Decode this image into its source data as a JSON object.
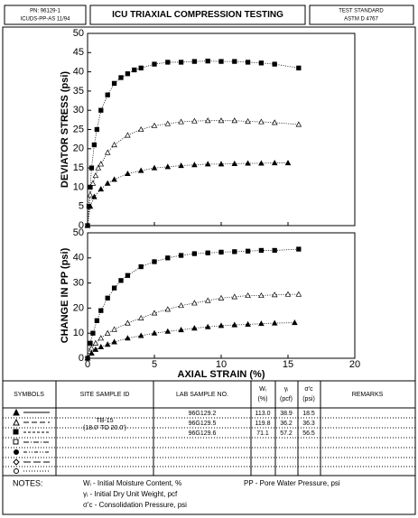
{
  "header": {
    "pn": "PN: 96129-1",
    "code": "ICUDS-PP-AS 11/94",
    "title": "ICU TRIAXIAL COMPRESSION TESTING",
    "standard_label": "TEST STANDARD",
    "standard": "ASTM D 4767"
  },
  "chart_data": [
    {
      "type": "line",
      "ylabel": "DEVIATOR STRESS (psi)",
      "xlim": [
        0,
        20
      ],
      "xticks": [
        0,
        5,
        10,
        15,
        20
      ],
      "show_xtick_labels": false,
      "ylim": [
        0,
        50
      ],
      "yticks": [
        0,
        5,
        10,
        15,
        20,
        25,
        30,
        35,
        40,
        45,
        50
      ],
      "grid": false,
      "series": [
        {
          "marker": "square",
          "filled": true,
          "color": "#000",
          "x": [
            0,
            0.1,
            0.2,
            0.3,
            0.5,
            0.7,
            1,
            1.5,
            2,
            2.5,
            3,
            3.5,
            4,
            5,
            6,
            7,
            8,
            9,
            10,
            11,
            12,
            13,
            14,
            15.8
          ],
          "values": [
            0,
            5,
            10,
            15,
            21,
            25,
            30,
            34,
            37,
            38.5,
            39.5,
            40.5,
            41,
            42,
            42.5,
            42.5,
            42.7,
            42.8,
            42.7,
            42.7,
            42.5,
            42.3,
            42,
            41
          ]
        },
        {
          "marker": "triangle",
          "filled": false,
          "color": "#000",
          "x": [
            0,
            0.2,
            0.4,
            0.6,
            0.8,
            1,
            1.5,
            2,
            3,
            4,
            5,
            6,
            7,
            8,
            9,
            10,
            11,
            12,
            13,
            14,
            15.8
          ],
          "values": [
            0,
            8,
            11,
            13,
            15,
            16,
            19,
            21,
            23.5,
            25,
            26,
            26.5,
            27,
            27.2,
            27.3,
            27.3,
            27.3,
            27.1,
            27,
            26.8,
            26.3
          ]
        },
        {
          "marker": "triangle",
          "filled": true,
          "color": "#000",
          "x": [
            0,
            0.2,
            0.5,
            1,
            1.5,
            2,
            3,
            4,
            5,
            6,
            7,
            8,
            9,
            10,
            11,
            12,
            13,
            14,
            15
          ],
          "values": [
            0,
            5,
            7.5,
            9.5,
            11,
            12,
            13.5,
            14.3,
            15,
            15.3,
            15.6,
            15.8,
            16,
            16,
            16.1,
            16.2,
            16.2,
            16.3,
            16.3
          ]
        }
      ]
    },
    {
      "type": "line",
      "ylabel": "CHANGE IN PP (psi)",
      "xlabel": "AXIAL STRAIN (%)",
      "xlim": [
        0,
        20
      ],
      "xticks": [
        0,
        5,
        10,
        15,
        20
      ],
      "show_xtick_labels": true,
      "ylim": [
        0,
        50
      ],
      "yticks": [
        0,
        10,
        20,
        30,
        40,
        50
      ],
      "grid": false,
      "series": [
        {
          "marker": "square",
          "filled": true,
          "color": "#000",
          "x": [
            0,
            0.2,
            0.4,
            0.7,
            1,
            1.5,
            2,
            2.5,
            3,
            4,
            5,
            6,
            7,
            8,
            9,
            10,
            11,
            12,
            13,
            14,
            15.8
          ],
          "values": [
            0,
            6,
            10,
            15,
            19,
            24,
            28,
            31,
            33,
            36.5,
            38.5,
            40,
            41,
            41.7,
            42,
            42.3,
            42.5,
            42.7,
            43,
            43,
            43.5
          ]
        },
        {
          "marker": "triangle",
          "filled": false,
          "color": "#000",
          "x": [
            0,
            0.3,
            0.6,
            1,
            1.5,
            2,
            3,
            4,
            5,
            6,
            7,
            8,
            9,
            10,
            11,
            12,
            13,
            14,
            15,
            15.8
          ],
          "values": [
            0,
            4,
            6,
            8,
            10,
            11.5,
            14,
            16,
            18,
            19.5,
            21,
            22,
            23,
            24,
            24.5,
            25,
            25,
            25.3,
            25.5,
            25.5
          ]
        },
        {
          "marker": "triangle",
          "filled": true,
          "color": "#000",
          "x": [
            0,
            0.3,
            0.6,
            1,
            1.5,
            2,
            3,
            4,
            5,
            6,
            7,
            8,
            9,
            10,
            11,
            12,
            13,
            14,
            15.5
          ],
          "values": [
            0,
            2,
            3.5,
            4.5,
            5.5,
            6.5,
            8,
            9,
            10,
            10.7,
            11.3,
            12,
            12.5,
            13,
            13.3,
            13.5,
            13.8,
            14,
            14.2
          ]
        }
      ]
    }
  ],
  "table": {
    "headers": [
      [
        "SYMBOLS"
      ],
      [
        "SITE SAMPLE ID"
      ],
      [
        "LAB SAMPLE NO."
      ],
      [
        "Wᵢ",
        "(%)"
      ],
      [
        "γᵢ",
        "(pcf)"
      ],
      [
        "σ'c",
        "(psi)"
      ],
      [
        "REMARKS"
      ]
    ],
    "site_id": [
      "TB-15",
      "(18.0' TO 20.0')"
    ],
    "rows": [
      [
        "96G129.2",
        "113.0",
        "38.9",
        "18.5"
      ],
      [
        "96G129.5",
        "119.8",
        "36.2",
        "36.3"
      ],
      [
        "96G129.6",
        "71.1",
        "57.2",
        "56.5"
      ]
    ]
  },
  "notes": {
    "label": "NOTES:",
    "items": [
      "Wᵢ - Initial Moisture Content, %",
      "γᵢ - Initial Dry Unit Weight, pcf",
      "σ'c - Consolidation Pressure, psi"
    ],
    "pp": "PP - Pore Water Pressure, psi"
  }
}
